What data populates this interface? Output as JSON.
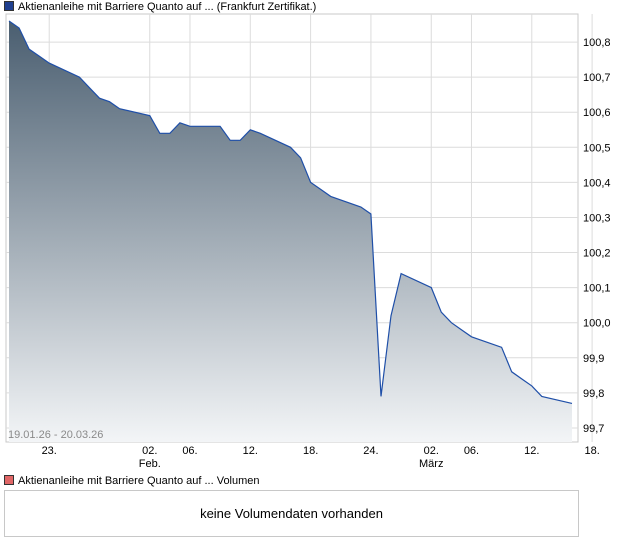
{
  "legend_top": {
    "label": "Aktienanleihe mit Barriere Quanto auf ... (Frankfurt Zertifikat.)",
    "color": "#1f3f8f"
  },
  "legend_volume": {
    "label": "Aktienanleihe mit Barriere Quanto auf ... Volumen",
    "color": "#e06666"
  },
  "volume_panel": {
    "message": "keine Volumendaten vorhanden"
  },
  "chart_data": {
    "type": "area",
    "date_range_label": "19.01.26 - 20.03.26",
    "y_ticks": [
      "99,7",
      "99,8",
      "99,9",
      "100,0",
      "100,1",
      "100,2",
      "100,3",
      "100,4",
      "100,5",
      "100,6",
      "100,7",
      "100,8"
    ],
    "ylim": [
      99.66,
      100.88
    ],
    "x_ticks": [
      {
        "label": "23.",
        "sublabel": "",
        "date": "2026-01-23"
      },
      {
        "label": "02.",
        "sublabel": "Feb.",
        "date": "2026-02-02"
      },
      {
        "label": "06.",
        "sublabel": "",
        "date": "2026-02-06"
      },
      {
        "label": "12.",
        "sublabel": "",
        "date": "2026-02-12"
      },
      {
        "label": "18.",
        "sublabel": "",
        "date": "2026-02-18"
      },
      {
        "label": "24.",
        "sublabel": "",
        "date": "2026-02-24"
      },
      {
        "label": "02.",
        "sublabel": "März",
        "date": "2026-03-02"
      },
      {
        "label": "06.",
        "sublabel": "",
        "date": "2026-03-06"
      },
      {
        "label": "12.",
        "sublabel": "",
        "date": "2026-03-12"
      },
      {
        "label": "18.",
        "sublabel": "",
        "date": "2026-03-18"
      }
    ],
    "series": [
      {
        "line_color": "#1f4fa8",
        "fill_top": "#4a5e70",
        "fill_bottom": "#f3f5f7",
        "points": [
          [
            "2026-01-19",
            100.86
          ],
          [
            "2026-01-20",
            100.84
          ],
          [
            "2026-01-21",
            100.78
          ],
          [
            "2026-01-22",
            100.76
          ],
          [
            "2026-01-23",
            100.74
          ],
          [
            "2026-01-26",
            100.7
          ],
          [
            "2026-01-27",
            100.67
          ],
          [
            "2026-01-28",
            100.64
          ],
          [
            "2026-01-29",
            100.63
          ],
          [
            "2026-01-30",
            100.61
          ],
          [
            "2026-02-02",
            100.59
          ],
          [
            "2026-02-03",
            100.54
          ],
          [
            "2026-02-04",
            100.54
          ],
          [
            "2026-02-05",
            100.57
          ],
          [
            "2026-02-06",
            100.56
          ],
          [
            "2026-02-09",
            100.56
          ],
          [
            "2026-02-10",
            100.52
          ],
          [
            "2026-02-11",
            100.52
          ],
          [
            "2026-02-12",
            100.55
          ],
          [
            "2026-02-13",
            100.54
          ],
          [
            "2026-02-16",
            100.5
          ],
          [
            "2026-02-17",
            100.47
          ],
          [
            "2026-02-18",
            100.4
          ],
          [
            "2026-02-19",
            100.38
          ],
          [
            "2026-02-20",
            100.36
          ],
          [
            "2026-02-23",
            100.33
          ],
          [
            "2026-02-24",
            100.31
          ],
          [
            "2026-02-25",
            99.79
          ],
          [
            "2026-02-26",
            100.02
          ],
          [
            "2026-02-27",
            100.14
          ],
          [
            "2026-03-02",
            100.1
          ],
          [
            "2026-03-03",
            100.03
          ],
          [
            "2026-03-04",
            100.0
          ],
          [
            "2026-03-05",
            99.98
          ],
          [
            "2026-03-06",
            99.96
          ],
          [
            "2026-03-09",
            99.93
          ],
          [
            "2026-03-10",
            99.86
          ],
          [
            "2026-03-11",
            99.84
          ],
          [
            "2026-03-12",
            99.82
          ],
          [
            "2026-03-13",
            99.79
          ],
          [
            "2026-03-16",
            99.77
          ]
        ]
      }
    ],
    "grid": true
  }
}
